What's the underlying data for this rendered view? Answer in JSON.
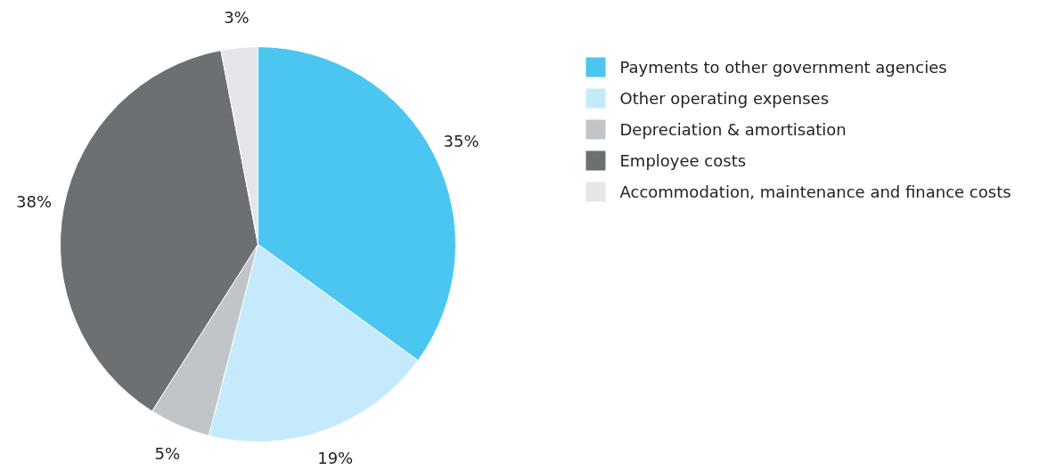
{
  "chart_data": {
    "type": "pie",
    "categories": [
      "Payments to other government agencies",
      "Other operating expenses",
      "Depreciation & amortisation",
      "Employee costs",
      "Accommodation, maintenance and finance costs"
    ],
    "values": [
      35,
      19,
      5,
      38,
      3
    ],
    "colors": [
      "#4bc6f1",
      "#c5eafb",
      "#c1c5c8",
      "#6c7072",
      "#e4e6ea"
    ],
    "value_labels": [
      "35%",
      "19%",
      "5%",
      "38%",
      "3%"
    ],
    "legend": "right"
  }
}
